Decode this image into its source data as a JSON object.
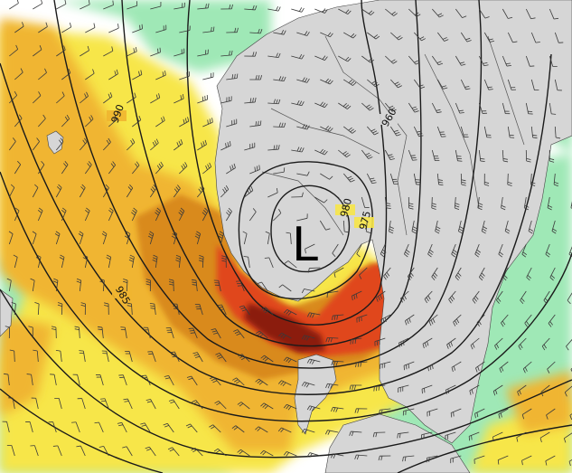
{
  "map": {
    "low_center_label": "L",
    "isobar_labels": [
      "990",
      "980",
      "975",
      "985",
      "960"
    ],
    "legend_colors": {
      "sea_background": "#ffffff",
      "land": "#d6d6d6",
      "wind_light": "#9fe8b6",
      "wind_moderate": "#f7e648",
      "wind_strong": "#f0b530",
      "wind_gale": "#d98a1f",
      "wind_storm": "#e0461c",
      "wind_hurricane": "#8b1c10",
      "isobar_line": "#1a1a1a",
      "barb_line": "#3a3a3a"
    },
    "icons": [
      "wind-barb-icon"
    ]
  }
}
